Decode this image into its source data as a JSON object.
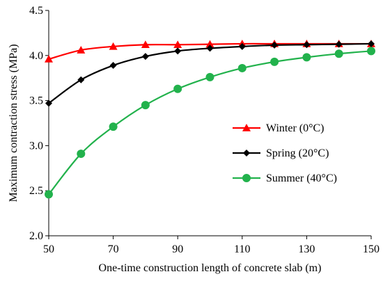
{
  "chart_data": {
    "type": "line",
    "title": "",
    "xlabel": "One-time construction length of concrete slab (m)",
    "ylabel": "Maximum contraction stress (MPa)",
    "xlim": [
      50,
      150
    ],
    "ylim": [
      2.0,
      4.5
    ],
    "x_ticks": [
      50,
      70,
      90,
      110,
      130,
      150
    ],
    "y_ticks": [
      2.0,
      2.5,
      3.0,
      3.5,
      4.0,
      4.5
    ],
    "x_tick_labels": [
      "50",
      "70",
      "90",
      "110",
      "130",
      "150"
    ],
    "y_tick_labels": [
      "2.0",
      "2.5",
      "3.0",
      "3.5",
      "4.0",
      "4.5"
    ],
    "grid": false,
    "legend_position": "right",
    "x": [
      50,
      60,
      70,
      80,
      90,
      100,
      110,
      120,
      130,
      140,
      150
    ],
    "series": [
      {
        "name": "Winter (0°C)",
        "color": "#ff0000",
        "marker": "triangle",
        "values": [
          3.96,
          4.06,
          4.1,
          4.12,
          4.12,
          4.125,
          4.13,
          4.13,
          4.13,
          4.13,
          4.13
        ]
      },
      {
        "name": "Spring (20°C)",
        "color": "#000000",
        "marker": "diamond",
        "values": [
          3.47,
          3.73,
          3.89,
          3.99,
          4.05,
          4.08,
          4.1,
          4.115,
          4.12,
          4.125,
          4.13
        ]
      },
      {
        "name": "Summer (40°C)",
        "color": "#22b24c",
        "marker": "circle",
        "values": [
          2.46,
          2.91,
          3.21,
          3.45,
          3.63,
          3.76,
          3.86,
          3.93,
          3.98,
          4.02,
          4.05
        ]
      }
    ]
  }
}
